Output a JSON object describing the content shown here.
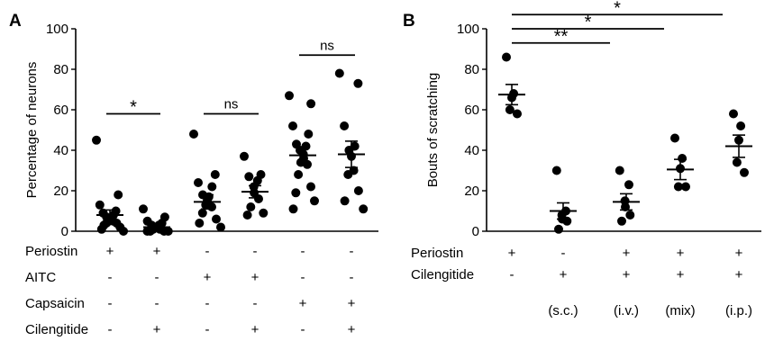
{
  "chart_data": [
    {
      "panel_label": "A",
      "type": "scatter",
      "ylabel": "Percentage of neurons",
      "ylim": [
        0,
        100
      ],
      "yticks": [
        "0",
        "20",
        "40",
        "60",
        "80",
        "100"
      ],
      "groups": [
        {
          "points": [
            45,
            18,
            13,
            10,
            9,
            8,
            7,
            6,
            6,
            5,
            5,
            4,
            4,
            3,
            2,
            1,
            0
          ],
          "mean": 8,
          "sem": 2.5
        },
        {
          "points": [
            11,
            7,
            5,
            4,
            3,
            3,
            2,
            2,
            1,
            1,
            0,
            0,
            0,
            0
          ],
          "mean": 2,
          "sem": 1
        },
        {
          "points": [
            48,
            28,
            24,
            22,
            18,
            17,
            15,
            13,
            12,
            9,
            6,
            4,
            2
          ],
          "mean": 14.5,
          "sem": 3.5
        },
        {
          "points": [
            37,
            28,
            27,
            25,
            22,
            19,
            16,
            12,
            9,
            8
          ],
          "mean": 19.5,
          "sem": 3
        },
        {
          "points": [
            67,
            63,
            52,
            48,
            43,
            42,
            40,
            38,
            36,
            34,
            33,
            28,
            22,
            19,
            15,
            11
          ],
          "mean": 37.5,
          "sem": 4
        },
        {
          "points": [
            78,
            73,
            52,
            42,
            40,
            37,
            30,
            28,
            20,
            15,
            11
          ],
          "mean": 38,
          "sem": 6.5
        }
      ],
      "annotations": [
        {
          "text": "*",
          "from": 0,
          "to": 1,
          "y": 58
        },
        {
          "text": "ns",
          "from": 2,
          "to": 3,
          "y": 58
        },
        {
          "text": "ns",
          "from": 4,
          "to": 5,
          "y": 87
        }
      ],
      "condition_rows": [
        {
          "label": "Periostin",
          "values": [
            "+",
            "+",
            "-",
            "-",
            "-",
            "-"
          ]
        },
        {
          "label": "AITC",
          "values": [
            "-",
            "-",
            "+",
            "+",
            "-",
            "-"
          ]
        },
        {
          "label": "Capsaicin",
          "values": [
            "-",
            "-",
            "-",
            "-",
            "+",
            "+"
          ]
        },
        {
          "label": "Cilengitide",
          "values": [
            "-",
            "+",
            "-",
            "+",
            "-",
            "+"
          ]
        }
      ]
    },
    {
      "panel_label": "B",
      "type": "scatter",
      "ylabel": "Bouts of scratching",
      "ylim": [
        0,
        100
      ],
      "yticks": [
        "0",
        "20",
        "40",
        "60",
        "80",
        "100"
      ],
      "groups": [
        {
          "points": [
            86,
            68,
            66,
            60,
            58
          ],
          "mean": 67.5,
          "sem": 5
        },
        {
          "points": [
            30,
            10,
            8,
            6,
            5,
            1
          ],
          "mean": 10,
          "sem": 4
        },
        {
          "points": [
            30,
            23,
            15,
            12,
            8,
            5
          ],
          "mean": 14.5,
          "sem": 4
        },
        {
          "points": [
            46,
            36,
            31,
            22,
            22
          ],
          "mean": 30.5,
          "sem": 5
        },
        {
          "points": [
            58,
            52,
            45,
            34,
            29
          ],
          "mean": 42,
          "sem": 5.5
        }
      ],
      "annotations": [
        {
          "text": "*",
          "from": 0,
          "to": 4,
          "y": 107
        },
        {
          "text": "*",
          "from": 0,
          "to": 3,
          "y": 100
        },
        {
          "text": "**",
          "from": 0,
          "to": 2,
          "y": 93
        }
      ],
      "condition_rows": [
        {
          "label": "Periostin",
          "values": [
            "+",
            "-",
            "+",
            "+",
            "+"
          ]
        },
        {
          "label": "Cilengitide",
          "values": [
            "-",
            "+",
            "+",
            "+",
            "+"
          ]
        }
      ],
      "route_labels": [
        "",
        "(s.c.)",
        "(i.v.)",
        "(mix)",
        "(i.p.)"
      ]
    }
  ]
}
